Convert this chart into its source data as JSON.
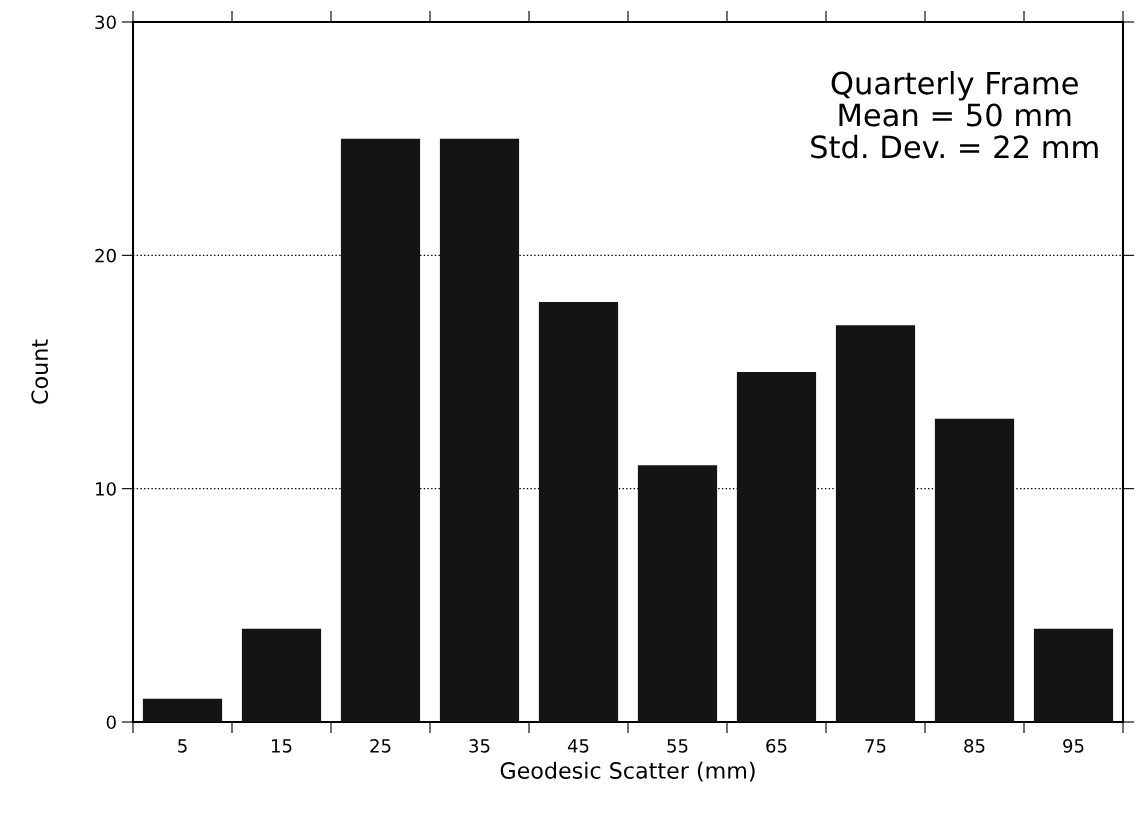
{
  "chart_data": {
    "type": "histogram",
    "xlabel": "Geodesic Scatter (mm)",
    "ylabel": "Count",
    "bins": [
      0,
      10,
      20,
      30,
      40,
      50,
      60,
      70,
      80,
      90,
      100
    ],
    "values": [
      1,
      4,
      25,
      25,
      18,
      11,
      15,
      17,
      13,
      4
    ],
    "color": "#141414",
    "xlim": [
      0,
      100
    ],
    "xticks": [
      {
        "value": 0,
        "label": null
      },
      5,
      {
        "value": 10,
        "label": null
      },
      15,
      {
        "value": 20,
        "label": null
      },
      25,
      {
        "value": 30,
        "label": null
      },
      35,
      {
        "value": 40,
        "label": null
      },
      45,
      {
        "value": 50,
        "label": null
      },
      55,
      {
        "value": 60,
        "label": null
      },
      65,
      {
        "value": 70,
        "label": null
      },
      75,
      {
        "value": 80,
        "label": null
      },
      85,
      {
        "value": 90,
        "label": null
      },
      95,
      {
        "value": 100,
        "label": null
      }
    ],
    "ylim": [
      0,
      30
    ],
    "yticks": [
      0,
      10,
      20,
      30
    ],
    "grid": "y",
    "annotations": [
      "Quarterly Frame\nMean = 50 mm\nStd. Dev. = 22 mm"
    ]
  }
}
